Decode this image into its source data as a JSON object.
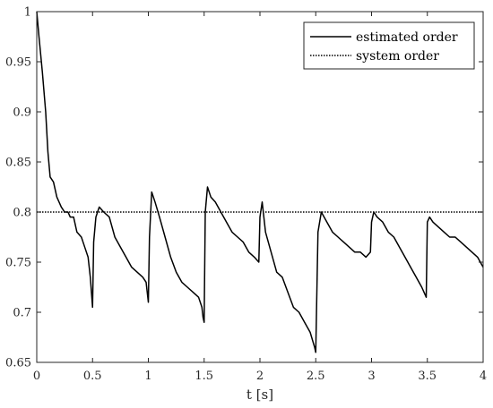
{
  "chart_data": {
    "type": "line",
    "xlabel": "t [s]",
    "ylabel": "",
    "xlim": [
      0,
      4
    ],
    "ylim": [
      0.65,
      1.0
    ],
    "xticks": [
      0,
      0.5,
      1,
      1.5,
      2,
      2.5,
      3,
      3.5,
      4
    ],
    "xtick_labels": [
      "0",
      "0.5",
      "1",
      "1.5",
      "2",
      "2.5",
      "3",
      "3.5",
      "4"
    ],
    "yticks": [
      0.65,
      0.7,
      0.75,
      0.8,
      0.85,
      0.9,
      0.95,
      1.0
    ],
    "ytick_labels": [
      "0.65",
      "0.7",
      "0.75",
      "0.8",
      "0.85",
      "0.9",
      "0.95",
      "1"
    ],
    "grid": false,
    "legend_position": "top-right",
    "series": [
      {
        "name": "estimated order",
        "style": "solid",
        "color": "#000000",
        "x": [
          0,
          0.02,
          0.05,
          0.08,
          0.1,
          0.12,
          0.15,
          0.18,
          0.2,
          0.22,
          0.25,
          0.28,
          0.3,
          0.33,
          0.36,
          0.4,
          0.43,
          0.46,
          0.48,
          0.49,
          0.5,
          0.51,
          0.53,
          0.56,
          0.6,
          0.65,
          0.7,
          0.75,
          0.8,
          0.85,
          0.9,
          0.95,
          0.98,
          0.99,
          1.0,
          1.01,
          1.03,
          1.06,
          1.1,
          1.15,
          1.2,
          1.25,
          1.3,
          1.35,
          1.4,
          1.45,
          1.48,
          1.49,
          1.5,
          1.51,
          1.53,
          1.56,
          1.6,
          1.65,
          1.7,
          1.75,
          1.8,
          1.85,
          1.9,
          1.95,
          1.99,
          2.0,
          2.02,
          2.05,
          2.1,
          2.15,
          2.2,
          2.25,
          2.3,
          2.35,
          2.4,
          2.45,
          2.49,
          2.5,
          2.52,
          2.55,
          2.6,
          2.65,
          2.7,
          2.75,
          2.8,
          2.85,
          2.9,
          2.95,
          2.99,
          3.0,
          3.02,
          3.05,
          3.1,
          3.15,
          3.2,
          3.25,
          3.3,
          3.35,
          3.4,
          3.45,
          3.49,
          3.5,
          3.52,
          3.55,
          3.6,
          3.65,
          3.7,
          3.75,
          3.8,
          3.85,
          3.9,
          3.95,
          4.0
        ],
        "y": [
          1.0,
          0.975,
          0.94,
          0.9,
          0.86,
          0.835,
          0.83,
          0.815,
          0.81,
          0.805,
          0.8,
          0.8,
          0.795,
          0.795,
          0.78,
          0.775,
          0.765,
          0.755,
          0.735,
          0.72,
          0.705,
          0.77,
          0.795,
          0.805,
          0.8,
          0.795,
          0.775,
          0.765,
          0.755,
          0.745,
          0.74,
          0.735,
          0.73,
          0.72,
          0.71,
          0.775,
          0.82,
          0.81,
          0.795,
          0.775,
          0.755,
          0.74,
          0.73,
          0.725,
          0.72,
          0.715,
          0.705,
          0.695,
          0.69,
          0.8,
          0.825,
          0.815,
          0.81,
          0.8,
          0.79,
          0.78,
          0.775,
          0.77,
          0.76,
          0.755,
          0.75,
          0.795,
          0.81,
          0.78,
          0.76,
          0.74,
          0.735,
          0.72,
          0.705,
          0.7,
          0.69,
          0.68,
          0.665,
          0.66,
          0.78,
          0.8,
          0.79,
          0.78,
          0.775,
          0.77,
          0.765,
          0.76,
          0.76,
          0.755,
          0.76,
          0.79,
          0.8,
          0.795,
          0.79,
          0.78,
          0.775,
          0.765,
          0.755,
          0.745,
          0.735,
          0.725,
          0.715,
          0.79,
          0.795,
          0.79,
          0.785,
          0.78,
          0.775,
          0.775,
          0.77,
          0.765,
          0.76,
          0.755,
          0.745
        ]
      },
      {
        "name": "system order",
        "style": "dotted",
        "color": "#000000",
        "x": [
          0,
          4
        ],
        "y": [
          0.8,
          0.8
        ]
      }
    ]
  }
}
